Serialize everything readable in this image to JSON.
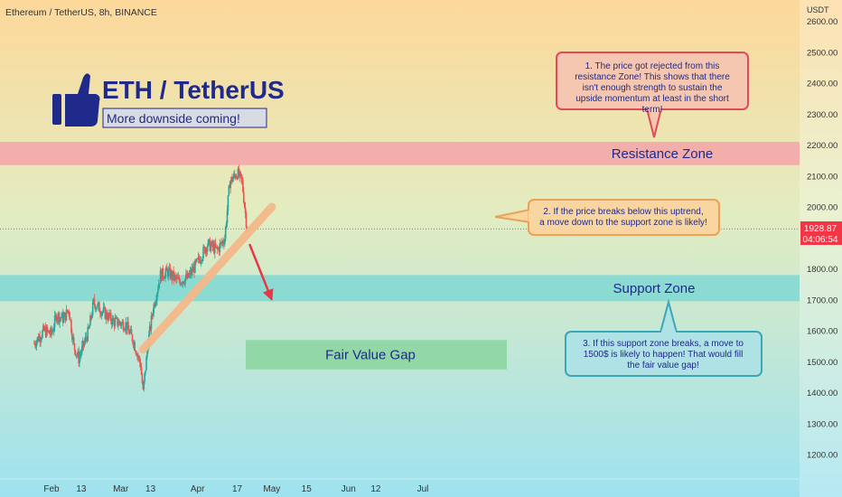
{
  "header": {
    "symbol_line": "Ethereum / TetherUS, 8h, BINANCE",
    "currency": "USDT"
  },
  "branding": {
    "pair": "ETH / TetherUS",
    "tagline": "More downside coming!",
    "icon": "thumbs-up-icon"
  },
  "price_tag": {
    "price": "1928.87",
    "countdown": "04:06:54"
  },
  "zones": {
    "resistance": {
      "label": "Resistance Zone",
      "low": 2135,
      "high": 2210,
      "color": "#f2a3a8"
    },
    "support": {
      "label": "Support Zone",
      "low": 1695,
      "high": 1780,
      "color": "#7fd8d4"
    },
    "fair_value_gap": {
      "label": "Fair Value Gap",
      "low": 1475,
      "high": 1570,
      "color": "#8fd6a3"
    }
  },
  "notes": [
    {
      "id": 1,
      "text": "1. The price got rejected from this resistance Zone! This shows that there isn't enough strength to sustain the upside momentum at least in the short term!"
    },
    {
      "id": 2,
      "text": "2. If the price breaks below this uptrend, a move down to the support zone is likely!"
    },
    {
      "id": 3,
      "text": "3. If this support zone breaks, a move to 1500$ is likely to happen! That would fill the fair value gap!"
    }
  ],
  "chart_data": {
    "type": "candlestick",
    "y_ticks": [
      "2600.00",
      "2500.00",
      "2400.00",
      "2300.00",
      "2200.00",
      "2100.00",
      "2000.00",
      "1900.00",
      "1800.00",
      "1700.00",
      "1600.00",
      "1500.00",
      "1400.00",
      "1300.00",
      "1200.00"
    ],
    "ylim": [
      1140,
      2640
    ],
    "x_ticks": [
      "Feb",
      "13",
      "Mar",
      "13",
      "Apr",
      "17",
      "May",
      "15",
      "Jun",
      "12",
      "Jul"
    ],
    "price_path": [
      {
        "date": "Jan 25",
        "price": 1560
      },
      {
        "date": "Jan 29",
        "price": 1600
      },
      {
        "date": "Feb 1",
        "price": 1590
      },
      {
        "date": "Feb 3",
        "price": 1650
      },
      {
        "date": "Feb 6",
        "price": 1640
      },
      {
        "date": "Feb 8",
        "price": 1670
      },
      {
        "date": "Feb 10",
        "price": 1550
      },
      {
        "date": "Feb 12",
        "price": 1510
      },
      {
        "date": "Feb 16",
        "price": 1600
      },
      {
        "date": "Feb 18",
        "price": 1690
      },
      {
        "date": "Feb 22",
        "price": 1660
      },
      {
        "date": "Feb 26",
        "price": 1630
      },
      {
        "date": "Mar 3",
        "price": 1620
      },
      {
        "date": "Mar 6",
        "price": 1570
      },
      {
        "date": "Mar 9",
        "price": 1490
      },
      {
        "date": "Mar 10",
        "price": 1400
      },
      {
        "date": "Mar 12",
        "price": 1560
      },
      {
        "date": "Mar 14",
        "price": 1670
      },
      {
        "date": "Mar 17",
        "price": 1780
      },
      {
        "date": "Mar 20",
        "price": 1790
      },
      {
        "date": "Mar 24",
        "price": 1760
      },
      {
        "date": "Mar 28",
        "price": 1770
      },
      {
        "date": "Apr 1",
        "price": 1820
      },
      {
        "date": "Apr 5",
        "price": 1880
      },
      {
        "date": "Apr 9",
        "price": 1860
      },
      {
        "date": "Apr 12",
        "price": 1900
      },
      {
        "date": "Apr 14",
        "price": 2080
      },
      {
        "date": "Apr 17",
        "price": 2110
      },
      {
        "date": "Apr 19",
        "price": 2080
      },
      {
        "date": "Apr 21",
        "price": 1930
      }
    ],
    "uptrend_line": {
      "from": {
        "date": "Mar 10",
        "price": 1540
      },
      "to": {
        "date": "May 1",
        "price": 2000
      }
    },
    "current_price": 1928.87,
    "projection_arrow": {
      "from": {
        "date": "Apr 22",
        "price": 1880
      },
      "to": {
        "date": "May 1",
        "price": 1700
      }
    }
  }
}
